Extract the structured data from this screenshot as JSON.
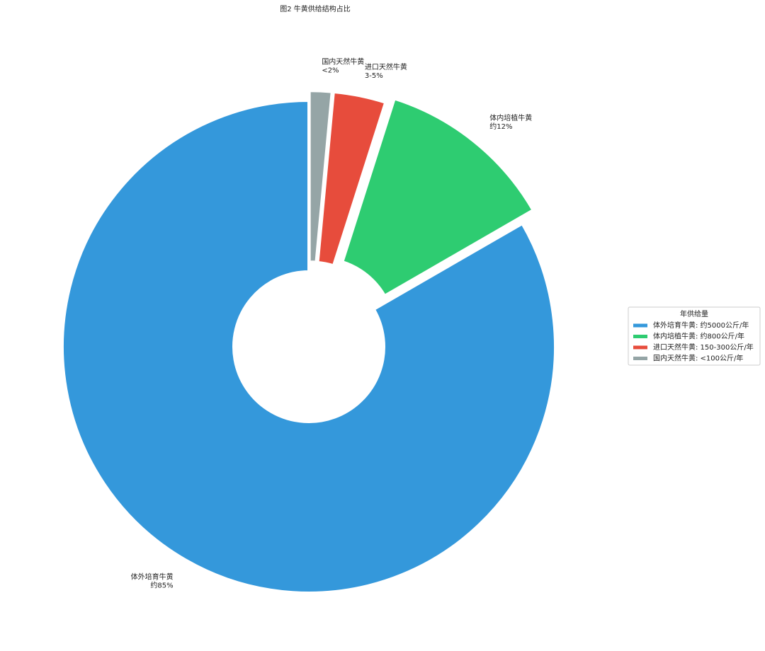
{
  "chart_data": {
    "type": "pie",
    "title": "图2 牛黄供给结构占比",
    "categories": [
      "体外培育牛黄",
      "体内培植牛黄",
      "进口天然牛黄",
      "国内天然牛黄"
    ],
    "values": [
      85,
      12,
      3.5,
      1.5
    ],
    "value_labels": [
      "约85%",
      "约12%",
      "3-5%",
      "<2%"
    ],
    "colors": [
      "#3498db",
      "#2ecc71",
      "#e74c3c",
      "#95a5a6"
    ],
    "donut": true,
    "legend": {
      "title": "年供给量",
      "position": "right",
      "entries": [
        "体外培育牛黄: 约5000公斤/年",
        "体内培植牛黄: 约800公斤/年",
        "进口天然牛黄: 150-300公斤/年",
        "国内天然牛黄: <100公斤/年"
      ]
    }
  }
}
